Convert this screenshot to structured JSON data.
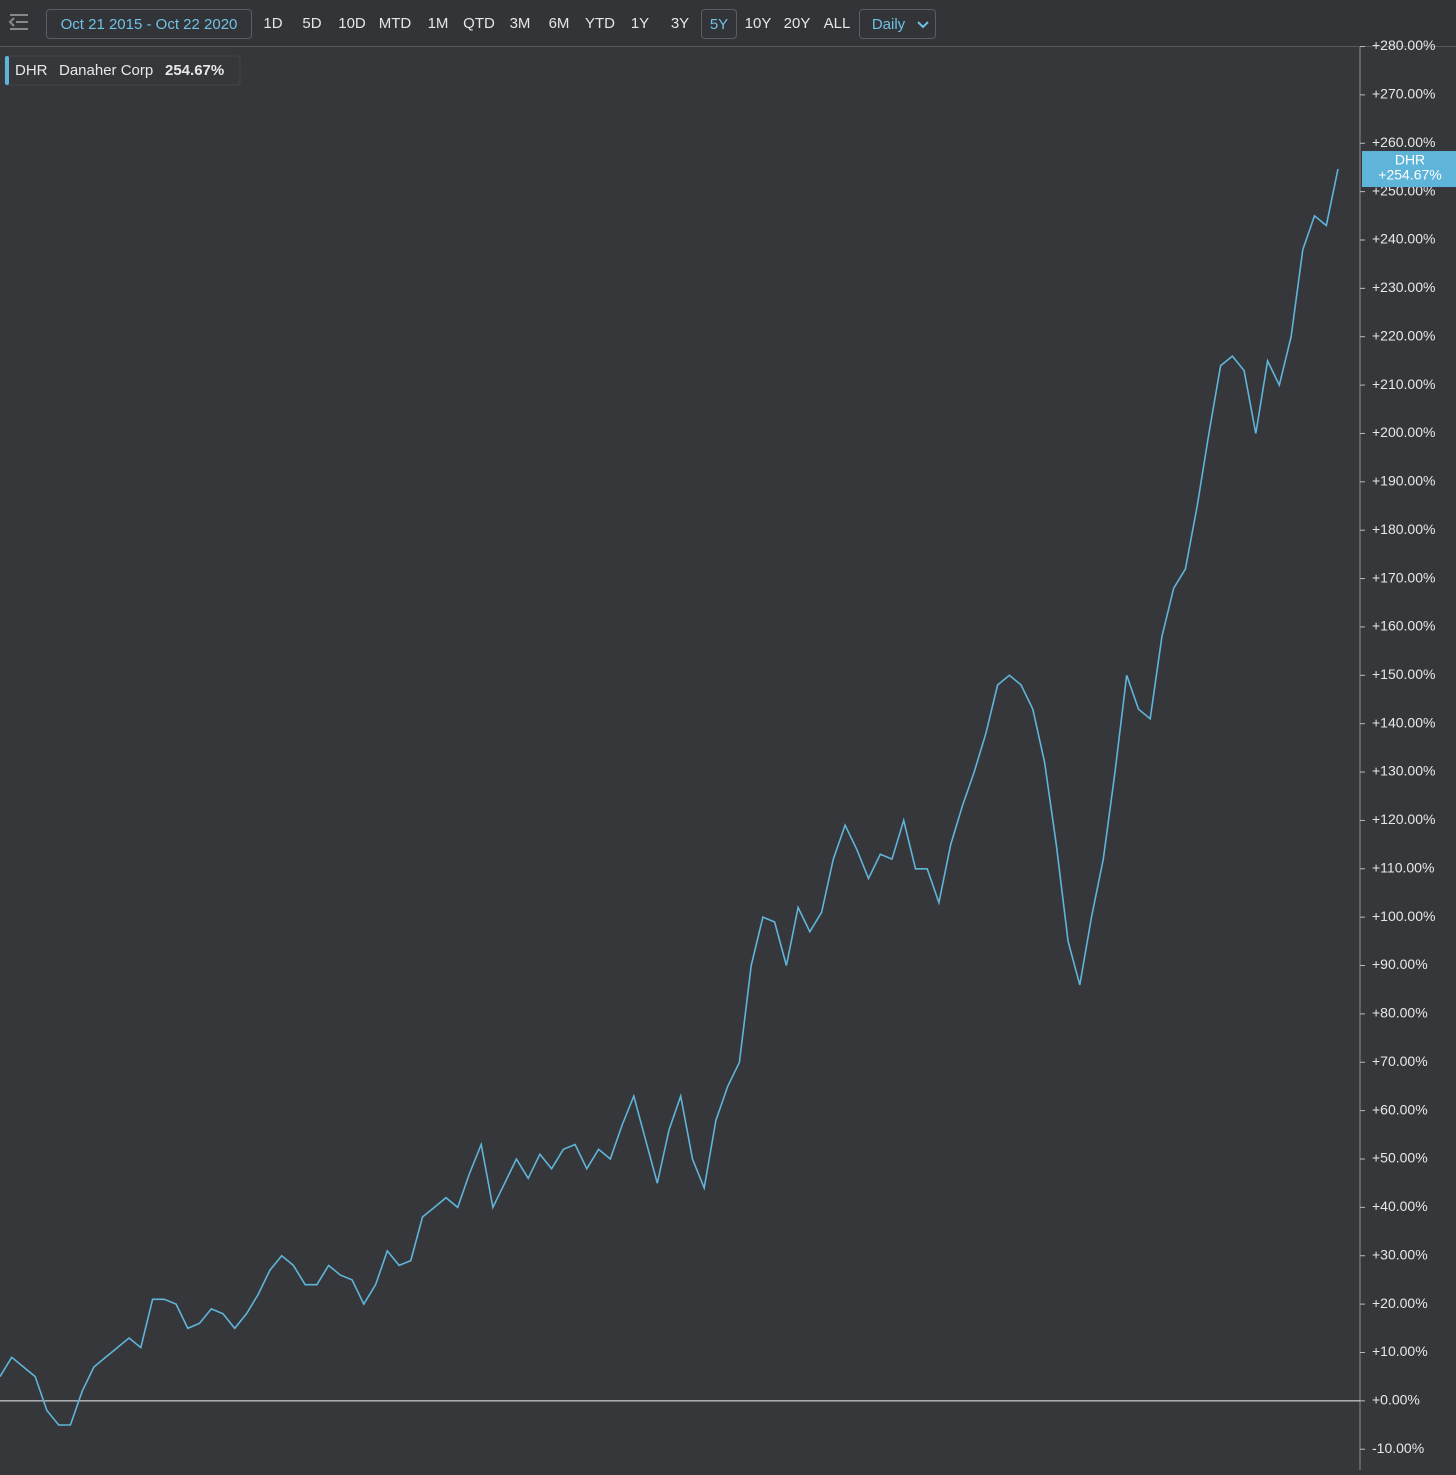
{
  "toolbar": {
    "date_range": "Oct 21 2015 - Oct 22 2020",
    "ranges": [
      "1D",
      "5D",
      "10D",
      "MTD",
      "1M",
      "QTD",
      "3M",
      "6M",
      "YTD",
      "1Y",
      "3Y",
      "5Y",
      "10Y",
      "20Y",
      "ALL"
    ],
    "active_range": "5Y",
    "interval": "Daily"
  },
  "legend": {
    "symbol": "DHR",
    "name": "Danaher Corp",
    "change": "254.67%"
  },
  "price_tag": {
    "symbol": "DHR",
    "label": "+254.67%"
  },
  "chart_data": {
    "type": "line",
    "series": [
      {
        "name": "DHR",
        "color": "#5fb4da",
        "values": [
          5,
          9,
          7,
          5,
          -2,
          -5,
          -5,
          2,
          7,
          9,
          11,
          13,
          11,
          21,
          21,
          20,
          15,
          16,
          19,
          18,
          15,
          18,
          22,
          27,
          30,
          28,
          24,
          24,
          28,
          26,
          25,
          20,
          24,
          31,
          28,
          29,
          38,
          40,
          42,
          40,
          47,
          53,
          40,
          45,
          50,
          46,
          51,
          48,
          52,
          53,
          48,
          52,
          50,
          57,
          63,
          54,
          45,
          56,
          63,
          50,
          44,
          58,
          65,
          70,
          90,
          100,
          99,
          90,
          102,
          97,
          101,
          112,
          119,
          114,
          108,
          113,
          112,
          120,
          110,
          110,
          103,
          115,
          123,
          130,
          138,
          148,
          150,
          148,
          143,
          132,
          115,
          95,
          86,
          100,
          112,
          130,
          150,
          143,
          141,
          158,
          168,
          172,
          185,
          200,
          214,
          216,
          213,
          200,
          215,
          210,
          220,
          238,
          245,
          243,
          254.67
        ]
      }
    ],
    "ylim": [
      -14.3,
      279.9
    ],
    "baseline": 0,
    "yticks": [
      {
        "value": -10,
        "label": "-10.00%"
      },
      {
        "value": 0,
        "label": "+0.00%"
      },
      {
        "value": 10,
        "label": "+10.00%"
      },
      {
        "value": 20,
        "label": "+20.00%"
      },
      {
        "value": 30,
        "label": "+30.00%"
      },
      {
        "value": 40,
        "label": "+40.00%"
      },
      {
        "value": 50,
        "label": "+50.00%"
      },
      {
        "value": 60,
        "label": "+60.00%"
      },
      {
        "value": 70,
        "label": "+70.00%"
      },
      {
        "value": 80,
        "label": "+80.00%"
      },
      {
        "value": 90,
        "label": "+90.00%"
      },
      {
        "value": 100,
        "label": "+100.00%"
      },
      {
        "value": 110,
        "label": "+110.00%"
      },
      {
        "value": 120,
        "label": "+120.00%"
      },
      {
        "value": 130,
        "label": "+130.00%"
      },
      {
        "value": 140,
        "label": "+140.00%"
      },
      {
        "value": 150,
        "label": "+150.00%"
      },
      {
        "value": 160,
        "label": "+160.00%"
      },
      {
        "value": 170,
        "label": "+170.00%"
      },
      {
        "value": 180,
        "label": "+180.00%"
      },
      {
        "value": 190,
        "label": "+190.00%"
      },
      {
        "value": 200,
        "label": "+200.00%"
      },
      {
        "value": 210,
        "label": "+210.00%"
      },
      {
        "value": 220,
        "label": "+220.00%"
      },
      {
        "value": 230,
        "label": "+230.00%"
      },
      {
        "value": 240,
        "label": "+240.00%"
      },
      {
        "value": 250,
        "label": "+250.00%"
      },
      {
        "value": 260,
        "label": "+260.00%"
      },
      {
        "value": 270,
        "label": "+270.00%"
      },
      {
        "value": 280,
        "label": "+280.00%"
      }
    ]
  }
}
